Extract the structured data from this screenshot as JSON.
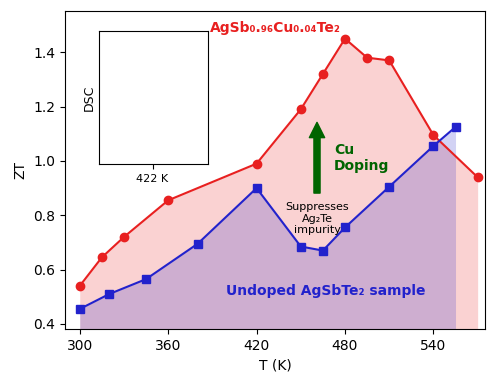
{
  "chart_data": [
    {
      "type": "area",
      "xlabel": "T (K)",
      "ylabel": "ZT",
      "xlim": [
        290,
        575
      ],
      "ylim": [
        0.38,
        1.55
      ],
      "xticks": [
        300,
        360,
        420,
        480,
        540
      ],
      "yticks": [
        0.4,
        0.6,
        0.8,
        1.0,
        1.2,
        1.4
      ],
      "series": [
        {
          "name": "AgSb₀.₉₆Cu₀.₀₄Te₂",
          "color": "#e82020",
          "marker": "circle",
          "x": [
            300,
            315,
            330,
            360,
            420,
            450,
            465,
            480,
            495,
            510,
            540,
            570
          ],
          "values": [
            0.54,
            0.645,
            0.72,
            0.855,
            0.99,
            1.19,
            1.32,
            1.45,
            1.38,
            1.37,
            1.095,
            0.94
          ]
        },
        {
          "name": "Undoped AgSbTe₂ sample",
          "color": "#2222cc",
          "marker": "square",
          "x": [
            300,
            320,
            345,
            380,
            420,
            450,
            465,
            480,
            510,
            540,
            555
          ],
          "values": [
            0.455,
            0.51,
            0.565,
            0.695,
            0.9,
            0.685,
            0.67,
            0.755,
            0.905,
            1.055,
            1.125
          ]
        }
      ],
      "annotations": [
        "Cu\nDoping",
        "Suppresses\nAg₂Te\nimpurity"
      ]
    },
    {
      "type": "line",
      "ylabel": "DSC",
      "xlim": [
        380,
        465
      ],
      "xticks": [
        {
          "value": 422,
          "label": "422 K"
        }
      ],
      "tick_labels": "x"
    }
  ]
}
